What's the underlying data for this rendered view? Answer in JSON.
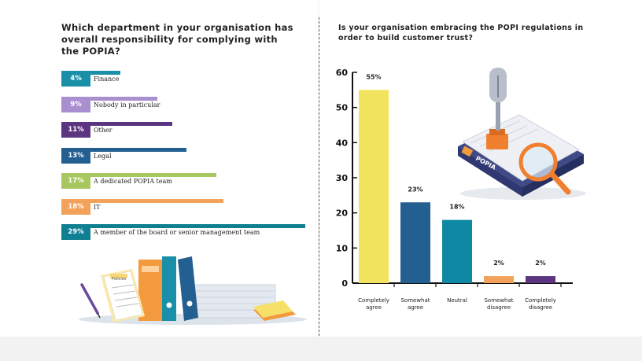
{
  "left": {
    "title": "Which department in your organisation has overall responsibility for complying with the POPIA?"
  },
  "right": {
    "title": "Is your organisation embracing the POPI regulations in order to build customer trust?",
    "popia_logo_text": "POPIA"
  },
  "illustration": {
    "folder_label": "Policies"
  },
  "chart_data": [
    {
      "type": "bar",
      "orientation": "horizontal",
      "title": "Which department in your organisation has overall responsibility for complying with the POPIA?",
      "categories": [
        "Finance",
        "Nobody in particular",
        "Other",
        "Legal",
        "A dedicated POPIA team",
        "IT",
        "A member of the board or senior management team"
      ],
      "values": [
        4,
        9,
        11,
        13,
        17,
        18,
        29
      ],
      "value_labels": [
        "4%",
        "9%",
        "11%",
        "13%",
        "17%",
        "18%",
        "29%"
      ],
      "colors": [
        "#1a8fa8",
        "#a98ed0",
        "#5c3580",
        "#235f90",
        "#a8c760",
        "#f2a25b",
        "#117f92"
      ],
      "xlim": [
        0,
        29
      ]
    },
    {
      "type": "bar",
      "orientation": "vertical",
      "title": "Is your organisation embracing the POPI regulations in order to build customer trust?",
      "categories": [
        "Completely agree",
        "Somewhat agree",
        "Neutral",
        "Somewhat disagree",
        "Completely disagree"
      ],
      "values": [
        55,
        23,
        18,
        2,
        2
      ],
      "value_labels": [
        "55%",
        "23%",
        "18%",
        "2%",
        "2%"
      ],
      "colors": [
        "#f2e35e",
        "#235f90",
        "#0e88a3",
        "#f2a25b",
        "#5c3580"
      ],
      "ylim": [
        0,
        60
      ],
      "yticks": [
        0,
        10,
        20,
        30,
        40,
        50,
        60
      ],
      "grid": false,
      "legend": "none"
    }
  ]
}
